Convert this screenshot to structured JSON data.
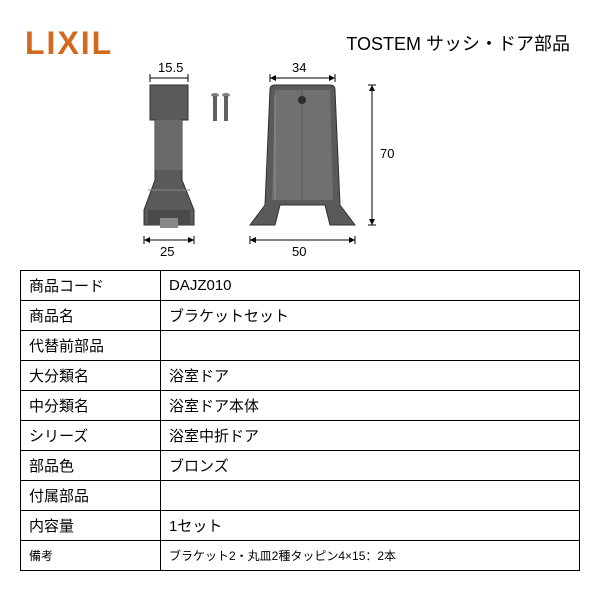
{
  "logo": "LIXIL",
  "header_title": "TOSTEM サッシ・ドア部品",
  "diagram": {
    "dimensions": {
      "top_left": "15.5",
      "top_right": "34",
      "right_side": "70",
      "bottom_left": "25",
      "bottom_right": "50"
    },
    "colors": {
      "part_fill": "#5a5a5a",
      "part_highlight": "#8a8a8a",
      "dimension_line": "#000000",
      "dimension_text": "#000000",
      "screw": "#606060"
    }
  },
  "table": {
    "rows": [
      {
        "label": "商品コード",
        "value": "DAJZ010"
      },
      {
        "label": "商品名",
        "value": "ブラケットセット"
      },
      {
        "label": "代替前部品",
        "value": ""
      },
      {
        "label": "大分類名",
        "value": "浴室ドア"
      },
      {
        "label": "中分類名",
        "value": "浴室ドア本体"
      },
      {
        "label": "シリーズ",
        "value": "浴室中折ドア"
      },
      {
        "label": "部品色",
        "value": "ブロンズ"
      },
      {
        "label": "付属部品",
        "value": ""
      },
      {
        "label": "内容量",
        "value": "1セット"
      },
      {
        "label": "備考",
        "value": "ブラケット2・丸皿2種タッピン4×15：2本"
      }
    ],
    "label_width": 140,
    "font_size": 15,
    "border_color": "#000000"
  }
}
